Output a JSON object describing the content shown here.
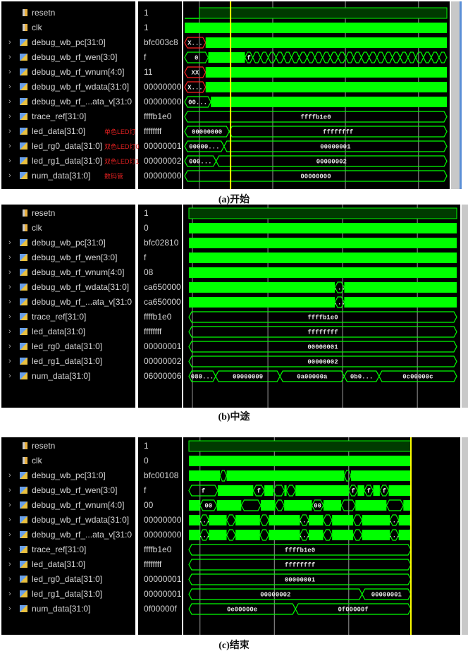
{
  "signals": [
    {
      "name": "resetn",
      "type": "bit"
    },
    {
      "name": "clk",
      "type": "bit"
    },
    {
      "name": "debug_wb_pc[31:0]",
      "type": "bus"
    },
    {
      "name": "debug_wb_rf_wen[3:0]",
      "type": "bus"
    },
    {
      "name": "debug_wb_rf_wnum[4:0]",
      "type": "bus"
    },
    {
      "name": "debug_wb_rf_wdata[31:0]",
      "type": "bus"
    },
    {
      "name": "debug_wb_rf_...ata_v[31:0",
      "type": "bus"
    },
    {
      "name": "trace_ref[31:0]",
      "type": "bus"
    },
    {
      "name": "led_data[31:0]",
      "type": "bus"
    },
    {
      "name": "led_rg0_data[31:0]",
      "type": "bus"
    },
    {
      "name": "led_rg1_data[31:0]",
      "type": "bus"
    },
    {
      "name": "num_data[31:0]",
      "type": "bus"
    }
  ],
  "icons": {
    "expand": "chevron-right-icon",
    "bit": "bit-signal-icon",
    "bus": "bus-signal-icon"
  },
  "colors": {
    "wave": "#00ff00",
    "wave_dark": "#003a00",
    "undefined": "#ff2020",
    "cursor": "#ffff00",
    "grid": "#9a9a9a",
    "annotation": "#e02020"
  },
  "panels": [
    {
      "caption": "(a)开始",
      "values": [
        "1",
        "1",
        "bfc003c8",
        "f",
        "11",
        "00000000",
        "00000000",
        "ffffb1e0",
        "ffffffff",
        "00000001",
        "00000002",
        "00000000"
      ],
      "annotations": [
        {
          "row": 8,
          "text": "单色LED灯"
        },
        {
          "row": 9,
          "text": "双色LED灯0"
        },
        {
          "row": 10,
          "text": "双色LED灯1"
        },
        {
          "row": 11,
          "text": "数码管"
        }
      ],
      "wave_labels": {
        "pc": "X...",
        "wen0": "0",
        "wenf": "f",
        "wnum": "XX",
        "wdata": "X...",
        "wdatav": "00...",
        "trace": "ffffb1e0",
        "led0": "00000000",
        "led1": "ffffffff",
        "rg00": "00000...",
        "rg01": "00000001",
        "rg10": "000...",
        "rg11": "00000002",
        "num": "00000000"
      }
    },
    {
      "caption": "(b)中途",
      "values": [
        "1",
        "0",
        "bfc02810",
        "f",
        "08",
        "ca650000",
        "ca650000",
        "ffffb1e0",
        "ffffffff",
        "00000001",
        "00000002",
        "06000006"
      ],
      "annotations": [],
      "wave_labels": {
        "gap": "...",
        "trace": "ffffb1e0",
        "led": "ffffffff",
        "rg0": "00000001",
        "rg1": "00000002",
        "n0": "080...",
        "n1": "09000009",
        "n2": "0a00000a",
        "n3": "0b0...",
        "n4": "0c00000c"
      }
    },
    {
      "caption": "(c)结束",
      "values": [
        "1",
        "0",
        "bfc00108",
        "f",
        "00",
        "00000000",
        "00000000",
        "ffffb1e0",
        "ffffffff",
        "00000001",
        "00000001",
        "0f00000f"
      ],
      "annotations": [],
      "wave_labels": {
        "f": "f",
        "w00": "00",
        "gap": "...",
        "trace": "ffffb1e0",
        "led": "ffffffff",
        "rg0": "00000001",
        "rg1a": "00000002",
        "rg1b": "00000001",
        "n0": "0e00000e",
        "n1": "0f00000f"
      }
    }
  ]
}
